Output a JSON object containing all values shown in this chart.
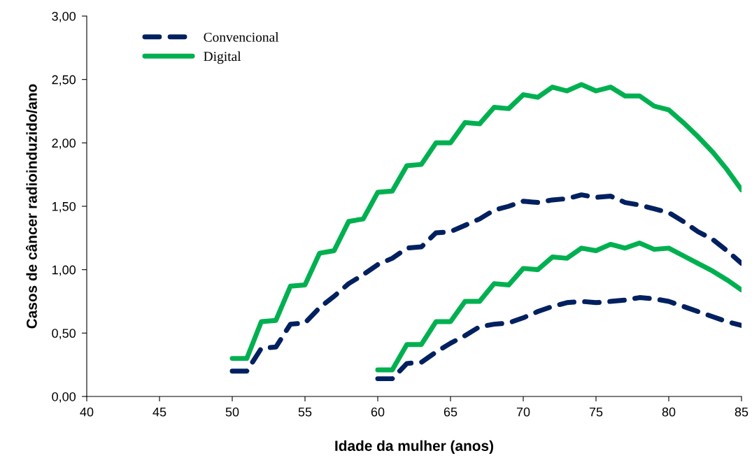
{
  "chart_data": {
    "type": "line",
    "xlabel": "Idade da mulher (anos)",
    "ylabel": "Casos de câncer radioinduzido/ano",
    "xlim": [
      40,
      85
    ],
    "xticks": [
      40,
      45,
      50,
      55,
      60,
      65,
      70,
      75,
      80,
      85
    ],
    "ylim": [
      0,
      3
    ],
    "yticks": [
      {
        "value": 0,
        "label": "0,00"
      },
      {
        "value": 0.5,
        "label": "0,50"
      },
      {
        "value": 1,
        "label": "1,00"
      },
      {
        "value": 1.5,
        "label": "1,50"
      },
      {
        "value": 2,
        "label": "2,00"
      },
      {
        "value": 2.5,
        "label": "2,50"
      },
      {
        "value": 3,
        "label": "3,00"
      }
    ],
    "grid": false,
    "legend": "top left",
    "marker": "none",
    "series": [
      {
        "name": "Convencional",
        "color": "#002060",
        "line_style": "dashed",
        "x": [
          50,
          51,
          52,
          53,
          54,
          55,
          56,
          57,
          58,
          59,
          60,
          61,
          62,
          63,
          64,
          65,
          66,
          67,
          68,
          69,
          70,
          71,
          72,
          73,
          74,
          75,
          76,
          77,
          78,
          79,
          80,
          81,
          82,
          83,
          84,
          85
        ],
        "values": [
          0.2,
          0.2,
          0.38,
          0.39,
          0.57,
          0.58,
          0.7,
          0.79,
          0.89,
          0.96,
          1.04,
          1.09,
          1.17,
          1.18,
          1.29,
          1.3,
          1.35,
          1.4,
          1.47,
          1.5,
          1.54,
          1.53,
          1.55,
          1.56,
          1.59,
          1.57,
          1.58,
          1.53,
          1.51,
          1.48,
          1.45,
          1.38,
          1.3,
          1.24,
          1.15,
          1.05
        ]
      },
      {
        "name": "Digital",
        "color": "#00b050",
        "line_style": "solid",
        "x": [
          50,
          51,
          52,
          53,
          54,
          55,
          56,
          57,
          58,
          59,
          60,
          61,
          62,
          63,
          64,
          65,
          66,
          67,
          68,
          69,
          70,
          71,
          72,
          73,
          74,
          75,
          76,
          77,
          78,
          79,
          80,
          81,
          82,
          83,
          84,
          85
        ],
        "values": [
          0.3,
          0.3,
          0.59,
          0.6,
          0.87,
          0.88,
          1.13,
          1.15,
          1.38,
          1.4,
          1.61,
          1.62,
          1.82,
          1.83,
          2.0,
          2.0,
          2.16,
          2.15,
          2.28,
          2.27,
          2.38,
          2.36,
          2.44,
          2.41,
          2.46,
          2.41,
          2.44,
          2.37,
          2.37,
          2.29,
          2.26,
          2.16,
          2.05,
          1.93,
          1.79,
          1.63
        ]
      },
      {
        "color": "#002060",
        "line_style": "dashed",
        "x": [
          60,
          61,
          62,
          63,
          64,
          65,
          66,
          67,
          68,
          69,
          70,
          71,
          72,
          73,
          74,
          75,
          76,
          77,
          78,
          79,
          80,
          81,
          82,
          83,
          84,
          85
        ],
        "values": [
          0.14,
          0.14,
          0.26,
          0.27,
          0.35,
          0.42,
          0.48,
          0.55,
          0.57,
          0.58,
          0.62,
          0.67,
          0.71,
          0.74,
          0.75,
          0.74,
          0.75,
          0.76,
          0.78,
          0.77,
          0.75,
          0.71,
          0.67,
          0.63,
          0.59,
          0.56
        ]
      },
      {
        "color": "#00b050",
        "line_style": "solid",
        "x": [
          60,
          61,
          62,
          63,
          64,
          65,
          66,
          67,
          68,
          69,
          70,
          71,
          72,
          73,
          74,
          75,
          76,
          77,
          78,
          79,
          80,
          81,
          82,
          83,
          84,
          85
        ],
        "values": [
          0.21,
          0.21,
          0.41,
          0.41,
          0.59,
          0.59,
          0.75,
          0.75,
          0.89,
          0.88,
          1.01,
          1.0,
          1.1,
          1.09,
          1.17,
          1.15,
          1.2,
          1.17,
          1.21,
          1.16,
          1.17,
          1.11,
          1.05,
          0.99,
          0.92,
          0.84
        ]
      }
    ]
  }
}
